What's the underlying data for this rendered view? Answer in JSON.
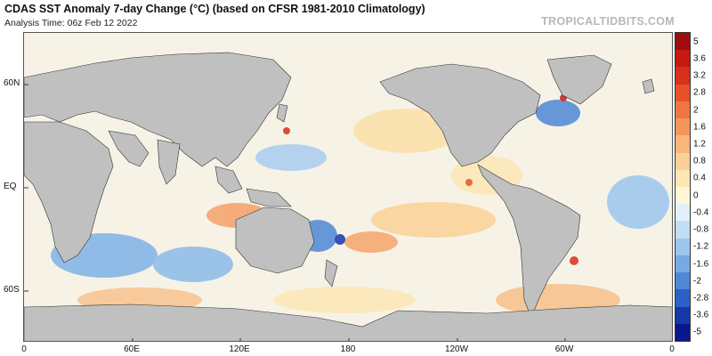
{
  "header": {
    "title": "CDAS SST Anomaly 7-day Change (°C) (based on CFSR 1981-2010 Climatology)",
    "analysis_time": "Analysis Time: 06z Feb 12 2022",
    "brand": "TROPICALTIDBITS.COM"
  },
  "map": {
    "projection": "equirectangular",
    "central_longitude": 180,
    "lat_labels": [
      "60N",
      "EQ",
      "60S"
    ],
    "lon_labels": [
      "0",
      "60E",
      "120E",
      "180",
      "120W",
      "60W",
      "0"
    ],
    "land_color": "#c0c0c0"
  },
  "colorbar": {
    "labels": [
      "5",
      "3.6",
      "3.2",
      "2.8",
      "2",
      "1.6",
      "1.2",
      "0.8",
      "0.4",
      "0",
      "-0.4",
      "-0.8",
      "-1.2",
      "-1.6",
      "-2",
      "-2.8",
      "-3.6",
      "-5"
    ],
    "colors": [
      "#9e0d0d",
      "#c41a12",
      "#d8301c",
      "#e5522a",
      "#ef7640",
      "#f4975a",
      "#f8b67a",
      "#fbd197",
      "#fde7b5",
      "#fff7d8",
      "#e2f0fb",
      "#c2def5",
      "#9cc6ee",
      "#77aae4",
      "#4f88d6",
      "#2c62c6",
      "#1638ab",
      "#0a188a"
    ]
  }
}
